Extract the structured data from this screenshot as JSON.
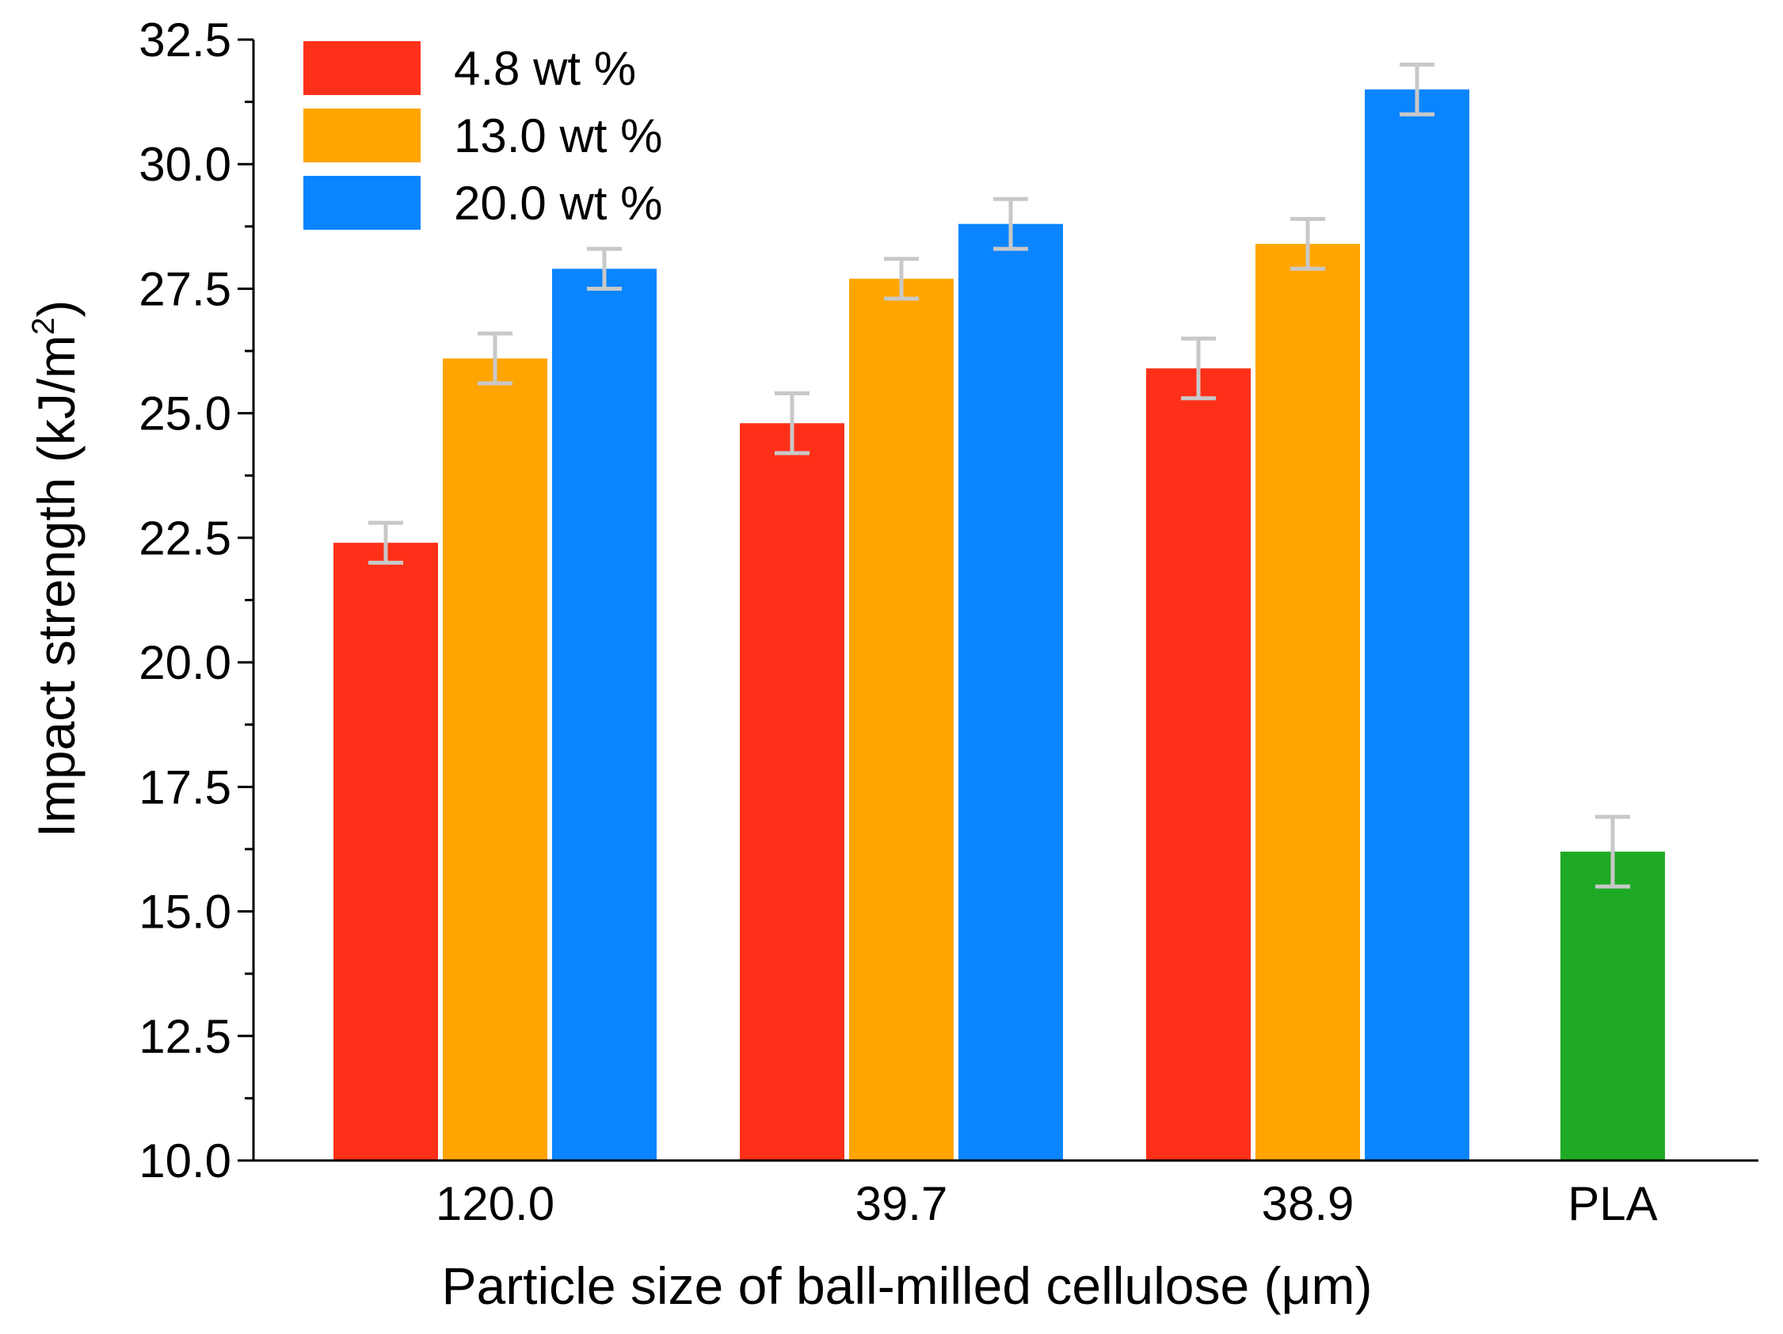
{
  "chart_data": {
    "type": "bar",
    "xlabel": "Particle size of ball-milled cellulose (μm)",
    "ylabel_main": "Impact strength (kJ/m",
    "ylabel_sup": "2",
    "ylabel_close": ")",
    "ylim": [
      10.0,
      32.5
    ],
    "ytick_step": 2.5,
    "yticks": [
      "10.0",
      "12.5",
      "15.0",
      "17.5",
      "20.0",
      "22.5",
      "25.0",
      "27.5",
      "30.0",
      "32.5"
    ],
    "categories": [
      "120.0",
      "39.7",
      "38.9",
      "PLA"
    ],
    "series": [
      {
        "name": "4.8 wt %",
        "color": "#ff3019",
        "values": [
          22.4,
          24.8,
          25.9,
          null
        ],
        "errors": [
          0.4,
          0.6,
          0.6,
          null
        ]
      },
      {
        "name": "13.0 wt %",
        "color": "#ffa500",
        "values": [
          26.1,
          27.7,
          28.4,
          null
        ],
        "errors": [
          0.5,
          0.4,
          0.5,
          null
        ]
      },
      {
        "name": "20.0 wt %",
        "color": "#0a85ff",
        "values": [
          27.9,
          28.8,
          31.5,
          null
        ],
        "errors": [
          0.4,
          0.5,
          0.5,
          null
        ]
      }
    ],
    "extra_bar": {
      "category": "PLA",
      "value": 16.2,
      "error": 0.7,
      "color": "#1faa26"
    },
    "error_bar_color": "#c8c8c8",
    "legend": [
      "4.8 wt %",
      "13.0 wt %",
      "20.0 wt %"
    ]
  }
}
